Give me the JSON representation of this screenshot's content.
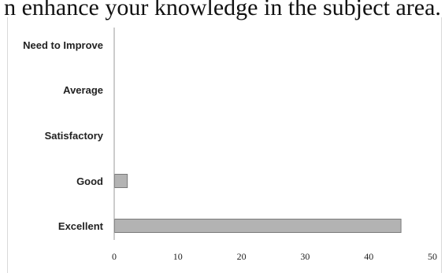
{
  "page": {
    "top_text_fragment": "n enhance your knowledge in the subject area."
  },
  "colors": {
    "bar_fill": "#b3b3b3",
    "bar_stroke": "#7a7a7a",
    "axis": "#9a9a9a",
    "text": "#222222"
  },
  "chart_data": {
    "type": "bar",
    "orientation": "horizontal",
    "categories": [
      "Need to Improve",
      "Average",
      "Satisfactory",
      "Good",
      "Excellent"
    ],
    "values": [
      0,
      0,
      0,
      2,
      45
    ],
    "xlim": [
      0,
      50
    ],
    "xticks": [
      "0",
      "10",
      "20",
      "30",
      "40",
      "50"
    ],
    "grid": false,
    "legend": "none"
  }
}
